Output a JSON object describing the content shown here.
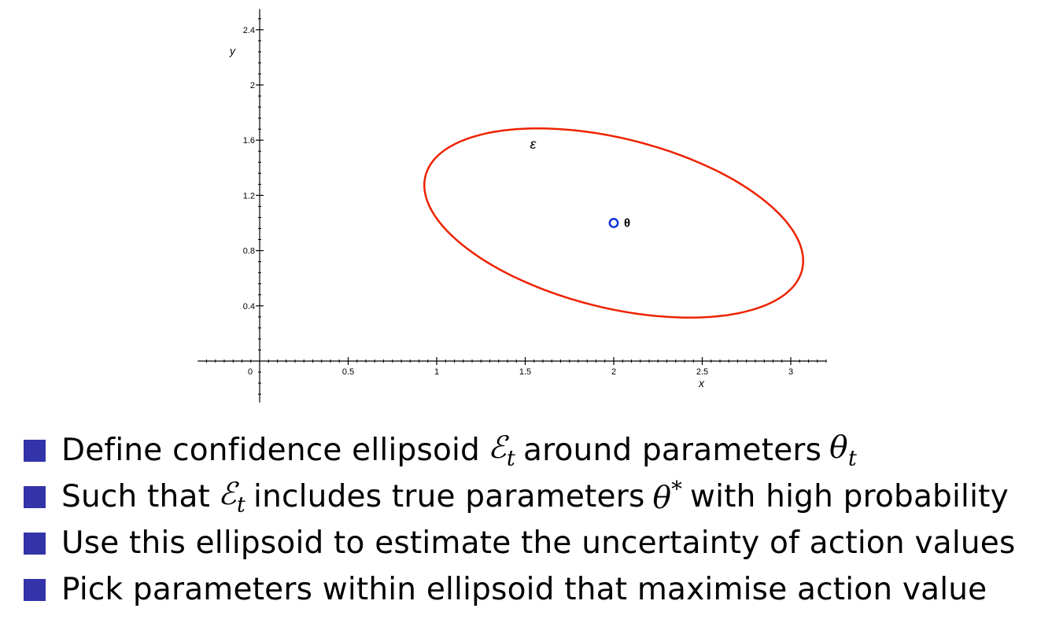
{
  "chart_data": {
    "type": "scatter",
    "xlabel": "x",
    "ylabel": "y",
    "xlim": [
      -0.35,
      3.2
    ],
    "ylim": [
      -0.3,
      2.55
    ],
    "x_ticks": [
      {
        "value": 0,
        "label": "0"
      },
      {
        "value": 0.5,
        "label": "0.5"
      },
      {
        "value": 1,
        "label": "1"
      },
      {
        "value": 1.5,
        "label": "1.5"
      },
      {
        "value": 2,
        "label": "2"
      },
      {
        "value": 2.5,
        "label": "2.5"
      },
      {
        "value": 3,
        "label": "3"
      }
    ],
    "y_ticks": [
      {
        "value": 0.4,
        "label": "0.4"
      },
      {
        "value": 0.8,
        "label": "0.8"
      },
      {
        "value": 1.2,
        "label": "1.2"
      },
      {
        "value": 1.6,
        "label": "1.6"
      },
      {
        "value": 2,
        "label": "2"
      },
      {
        "value": 2.4,
        "label": "2.4"
      }
    ],
    "ellipse": {
      "label": "ε",
      "color": "#ee2200",
      "center": [
        2.0,
        1.0
      ],
      "semi_major": 1.12,
      "semi_minor": 0.6,
      "angle_deg": -20.5,
      "label_position": [
        1.5,
        1.55
      ]
    },
    "point": {
      "label": "θ",
      "x": 2.0,
      "y": 1.0,
      "color": "#1133dd"
    },
    "grid": false
  },
  "bullets": {
    "marker_color": "#3333aa",
    "items": [
      {
        "text": "Define confidence ellipsoid",
        "math": "ℰ",
        "math_sub": "t",
        "math_sup": "",
        "after": "around parameters",
        "math2": "θ",
        "math2_sub": "t",
        "math2_sup": "",
        "tail": ""
      },
      {
        "text": "Such that",
        "math": "ℰ",
        "math_sub": "t",
        "math_sup": "",
        "after": "includes true parameters",
        "math2": "θ",
        "math2_sub": "",
        "math2_sup": "*",
        "tail": "with high probability"
      },
      {
        "text": "Use this ellipsoid to estimate the uncertainty of action values",
        "math": "",
        "math_sub": "",
        "math_sup": "",
        "after": "",
        "math2": "",
        "math2_sub": "",
        "math2_sup": "",
        "tail": ""
      },
      {
        "text": "Pick parameters within ellipsoid that maximise action value",
        "math": "",
        "math_sub": "",
        "math_sup": "",
        "after": "",
        "math2": "",
        "math2_sub": "",
        "math2_sup": "",
        "tail": ""
      }
    ]
  }
}
